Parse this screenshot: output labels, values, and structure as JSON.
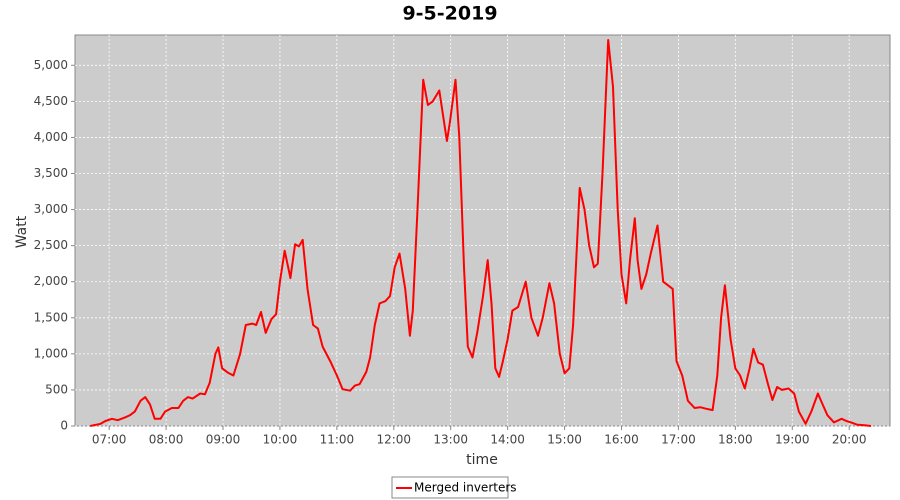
{
  "chart_data": {
    "type": "line",
    "title": "9-5-2019",
    "x_label": "time",
    "y_label": "Watt",
    "grid": true,
    "legend": "bottom",
    "xlim": [
      "06:24",
      "20:43"
    ],
    "xticks": [
      "07:00",
      "08:00",
      "09:00",
      "10:00",
      "11:00",
      "12:00",
      "13:00",
      "14:00",
      "15:00",
      "16:00",
      "17:00",
      "18:00",
      "19:00",
      "20:00"
    ],
    "ylim": [
      0,
      5420
    ],
    "yticks": [
      0,
      500,
      {
        "value": 1000,
        "label": "1,000"
      },
      {
        "value": 1500,
        "label": "1,500"
      },
      {
        "value": 2000,
        "label": "2,000"
      },
      {
        "value": 2500,
        "label": "2,500"
      },
      {
        "value": 3000,
        "label": "3,000"
      },
      {
        "value": 3500,
        "label": "3,500"
      },
      {
        "value": 4000,
        "label": "4,000"
      },
      {
        "value": 4500,
        "label": "4,500"
      },
      {
        "value": 5000,
        "label": "5,000"
      }
    ],
    "x": [
      "06:40",
      "06:51",
      "06:56",
      "07:03",
      "07:09",
      "07:17",
      "07:22",
      "07:27",
      "07:33",
      "07:38",
      "07:43",
      "07:48",
      "07:54",
      "07:59",
      "08:06",
      "08:13",
      "08:18",
      "08:23",
      "08:28",
      "08:36",
      "08:41",
      "08:46",
      "08:52",
      "08:55",
      "08:59",
      "09:05",
      "09:11",
      "09:18",
      "09:24",
      "09:31",
      "09:35",
      "09:40",
      "09:45",
      "09:51",
      "09:56",
      "10:00",
      "10:05",
      "10:11",
      "10:16",
      "10:20",
      "10:24",
      "10:29",
      "10:35",
      "10:40",
      "10:45",
      "10:53",
      "11:00",
      "11:06",
      "11:14",
      "11:19",
      "11:24",
      "11:31",
      "11:35",
      "11:40",
      "11:45",
      "11:51",
      "11:56",
      "12:01",
      "12:06",
      "12:12",
      "12:17",
      "12:20",
      "12:25",
      "12:31",
      "12:36",
      "12:41",
      "12:48",
      "12:56",
      "12:59",
      "13:05",
      "13:09",
      "13:14",
      "13:18",
      "13:23",
      "13:28",
      "13:34",
      "13:39",
      "13:43",
      "13:47",
      "13:51",
      "13:55",
      "14:00",
      "14:05",
      "14:11",
      "14:19",
      "14:25",
      "14:32",
      "14:37",
      "14:44",
      "14:49",
      "14:55",
      "15:00",
      "15:05",
      "15:09",
      "15:16",
      "15:21",
      "15:26",
      "15:31",
      "15:35",
      "15:40",
      "15:46",
      "15:51",
      "15:56",
      "16:00",
      "16:05",
      "16:09",
      "16:14",
      "16:17",
      "16:21",
      "16:26",
      "16:31",
      "16:38",
      "16:44",
      "16:49",
      "16:54",
      "16:58",
      "17:04",
      "17:10",
      "17:17",
      "17:23",
      "17:29",
      "17:36",
      "17:41",
      "17:45",
      "17:49",
      "17:55",
      "18:00",
      "18:05",
      "18:10",
      "18:15",
      "18:19",
      "18:24",
      "18:29",
      "18:34",
      "18:39",
      "18:44",
      "18:49",
      "18:56",
      "19:02",
      "19:07",
      "19:14",
      "19:20",
      "19:27",
      "19:32",
      "19:37",
      "19:44",
      "19:52",
      "19:57",
      "20:02",
      "20:08",
      "20:16",
      "20:23"
    ],
    "series": [
      {
        "name": "Merged inverters",
        "color": "#ff0000",
        "values": [
          0,
          30,
          70,
          100,
          80,
          120,
          150,
          200,
          350,
          400,
          300,
          100,
          100,
          200,
          250,
          250,
          350,
          400,
          380,
          450,
          440,
          600,
          1000,
          1090,
          800,
          740,
          700,
          1000,
          1400,
          1420,
          1400,
          1580,
          1290,
          1480,
          1550,
          2000,
          2430,
          2050,
          2520,
          2490,
          2580,
          1900,
          1400,
          1350,
          1100,
          900,
          700,
          510,
          490,
          560,
          580,
          750,
          950,
          1400,
          1700,
          1730,
          1800,
          2200,
          2390,
          1900,
          1250,
          1600,
          3000,
          4800,
          4450,
          4500,
          4650,
          3950,
          4200,
          4800,
          4000,
          2200,
          1100,
          950,
          1300,
          1800,
          2300,
          1700,
          800,
          680,
          900,
          1200,
          1600,
          1650,
          2000,
          1500,
          1250,
          1500,
          1980,
          1700,
          1000,
          730,
          800,
          1400,
          3300,
          3000,
          2500,
          2200,
          2250,
          3500,
          5350,
          4700,
          3000,
          2100,
          1700,
          2300,
          2880,
          2300,
          1900,
          2100,
          2400,
          2780,
          2000,
          1950,
          1900,
          900,
          700,
          350,
          250,
          260,
          240,
          220,
          700,
          1500,
          1950,
          1200,
          800,
          700,
          520,
          800,
          1070,
          880,
          850,
          600,
          360,
          540,
          500,
          520,
          450,
          200,
          30,
          200,
          450,
          300,
          150,
          50,
          100,
          70,
          50,
          20,
          10,
          0
        ]
      }
    ]
  }
}
